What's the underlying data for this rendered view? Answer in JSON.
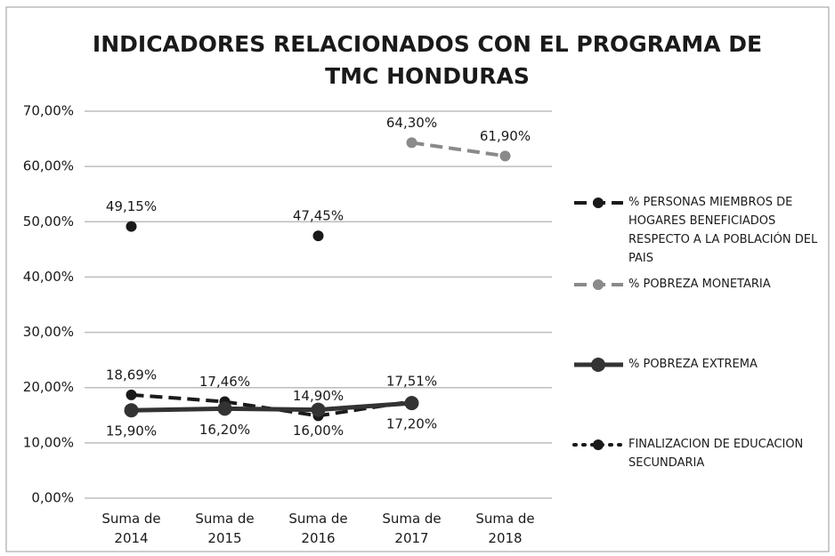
{
  "chart_data": {
    "type": "line",
    "title": "INDICADORES RELACIONADOS CON EL PROGRAMA DE TMC HONDURAS",
    "categories": [
      "Suma de 2014",
      "Suma de 2015",
      "Suma de 2016",
      "Suma de 2017",
      "Suma de 2018"
    ],
    "series": [
      {
        "name": "% PERSONAS MIEMBROS DE HOGARES BENEFICIADOS RESPECTO A LA POBLACIÓN DEL PAIS",
        "color": "#1a1a1a",
        "linestyle": "dashed",
        "values": [
          18.69,
          17.46,
          14.9,
          17.51,
          null
        ],
        "value_labels": [
          "18,69%",
          "17,46%",
          "14,90%",
          "17,51%",
          null
        ]
      },
      {
        "name": "% POBREZA MONETARIA",
        "color": "#8a8a8a",
        "linestyle": "dashed",
        "values": [
          null,
          null,
          null,
          64.3,
          61.9
        ],
        "value_labels": [
          null,
          null,
          null,
          "64,30%",
          "61,90%"
        ]
      },
      {
        "name": "% POBREZA EXTREMA",
        "color": "#333333",
        "linestyle": "solid",
        "values": [
          15.9,
          16.2,
          16.0,
          17.2,
          null
        ],
        "value_labels": [
          "15,90%",
          "16,20%",
          "16,00%",
          "17,20%",
          null
        ]
      },
      {
        "name": "FINALIZACION DE EDUCACION SECUNDARIA",
        "color": "#1a1a1a",
        "linestyle": "dotted",
        "values": [
          49.15,
          null,
          47.45,
          null,
          null
        ],
        "value_labels": [
          "49,15%",
          null,
          "47,45%",
          null,
          null
        ]
      }
    ],
    "ylim": [
      0,
      70
    ],
    "yticks": [
      {
        "value": 0,
        "label": "0,00%"
      },
      {
        "value": 10,
        "label": "10,00%"
      },
      {
        "value": 20,
        "label": "20,00%"
      },
      {
        "value": 30,
        "label": "30,00%"
      },
      {
        "value": 40,
        "label": "40,00%"
      },
      {
        "value": 50,
        "label": "50,00%"
      },
      {
        "value": 60,
        "label": "60,00%"
      },
      {
        "value": 70,
        "label": "70,00%"
      }
    ],
    "grid": true,
    "legend": "right"
  }
}
